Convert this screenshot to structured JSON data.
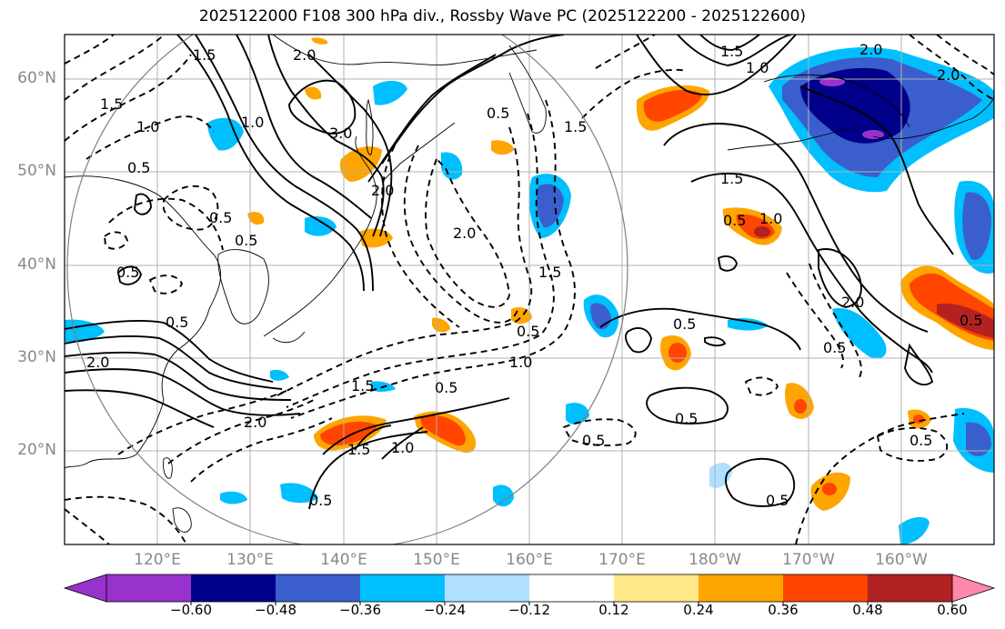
{
  "title": "2025122000 F108 300 hPa div., Rossby Wave PC (2025122200 - 2025122600)",
  "lat_labels": [
    "60°N",
    "50°N",
    "40°N",
    "30°N",
    "20°N"
  ],
  "lon_labels": [
    "120°E",
    "130°E",
    "140°E",
    "150°E",
    "160°E",
    "170°E",
    "180°W",
    "170°W",
    "160°W"
  ],
  "colorbar": {
    "ticks": [
      "−0.60",
      "−0.48",
      "−0.36",
      "−0.24",
      "−0.12",
      "0.12",
      "0.24",
      "0.36",
      "0.48",
      "0.60"
    ],
    "colors": [
      "#9932cc",
      "#00008b",
      "#3a5fcd",
      "#00bfff",
      "#b0e0ff",
      "#ffffff",
      "#ffe98a",
      "#ffa500",
      "#ff4500",
      "#b22222"
    ],
    "under_color": "#9932cc",
    "over_color": "#ff88aa"
  },
  "contour_labels": [
    "2.0",
    "1.5",
    "1.0",
    "0.5",
    "3.0",
    "2.0",
    "1.5",
    "1.0",
    "0.5",
    "2.0",
    "0.5",
    "0.5",
    "1.5",
    "1.0",
    "0.5",
    "2.0",
    "1.5",
    "1.0",
    "0.5",
    "0.5",
    "0.5",
    "0.5",
    "0.5",
    "1.5",
    "2.0",
    "0.5",
    "0.5",
    "0.5",
    "2.0",
    "1.5",
    "1.0",
    "1.0",
    "0.5",
    "1.5",
    "2.0",
    "0.5",
    "0.5",
    "0.5",
    "2.0",
    "1.5"
  ]
}
